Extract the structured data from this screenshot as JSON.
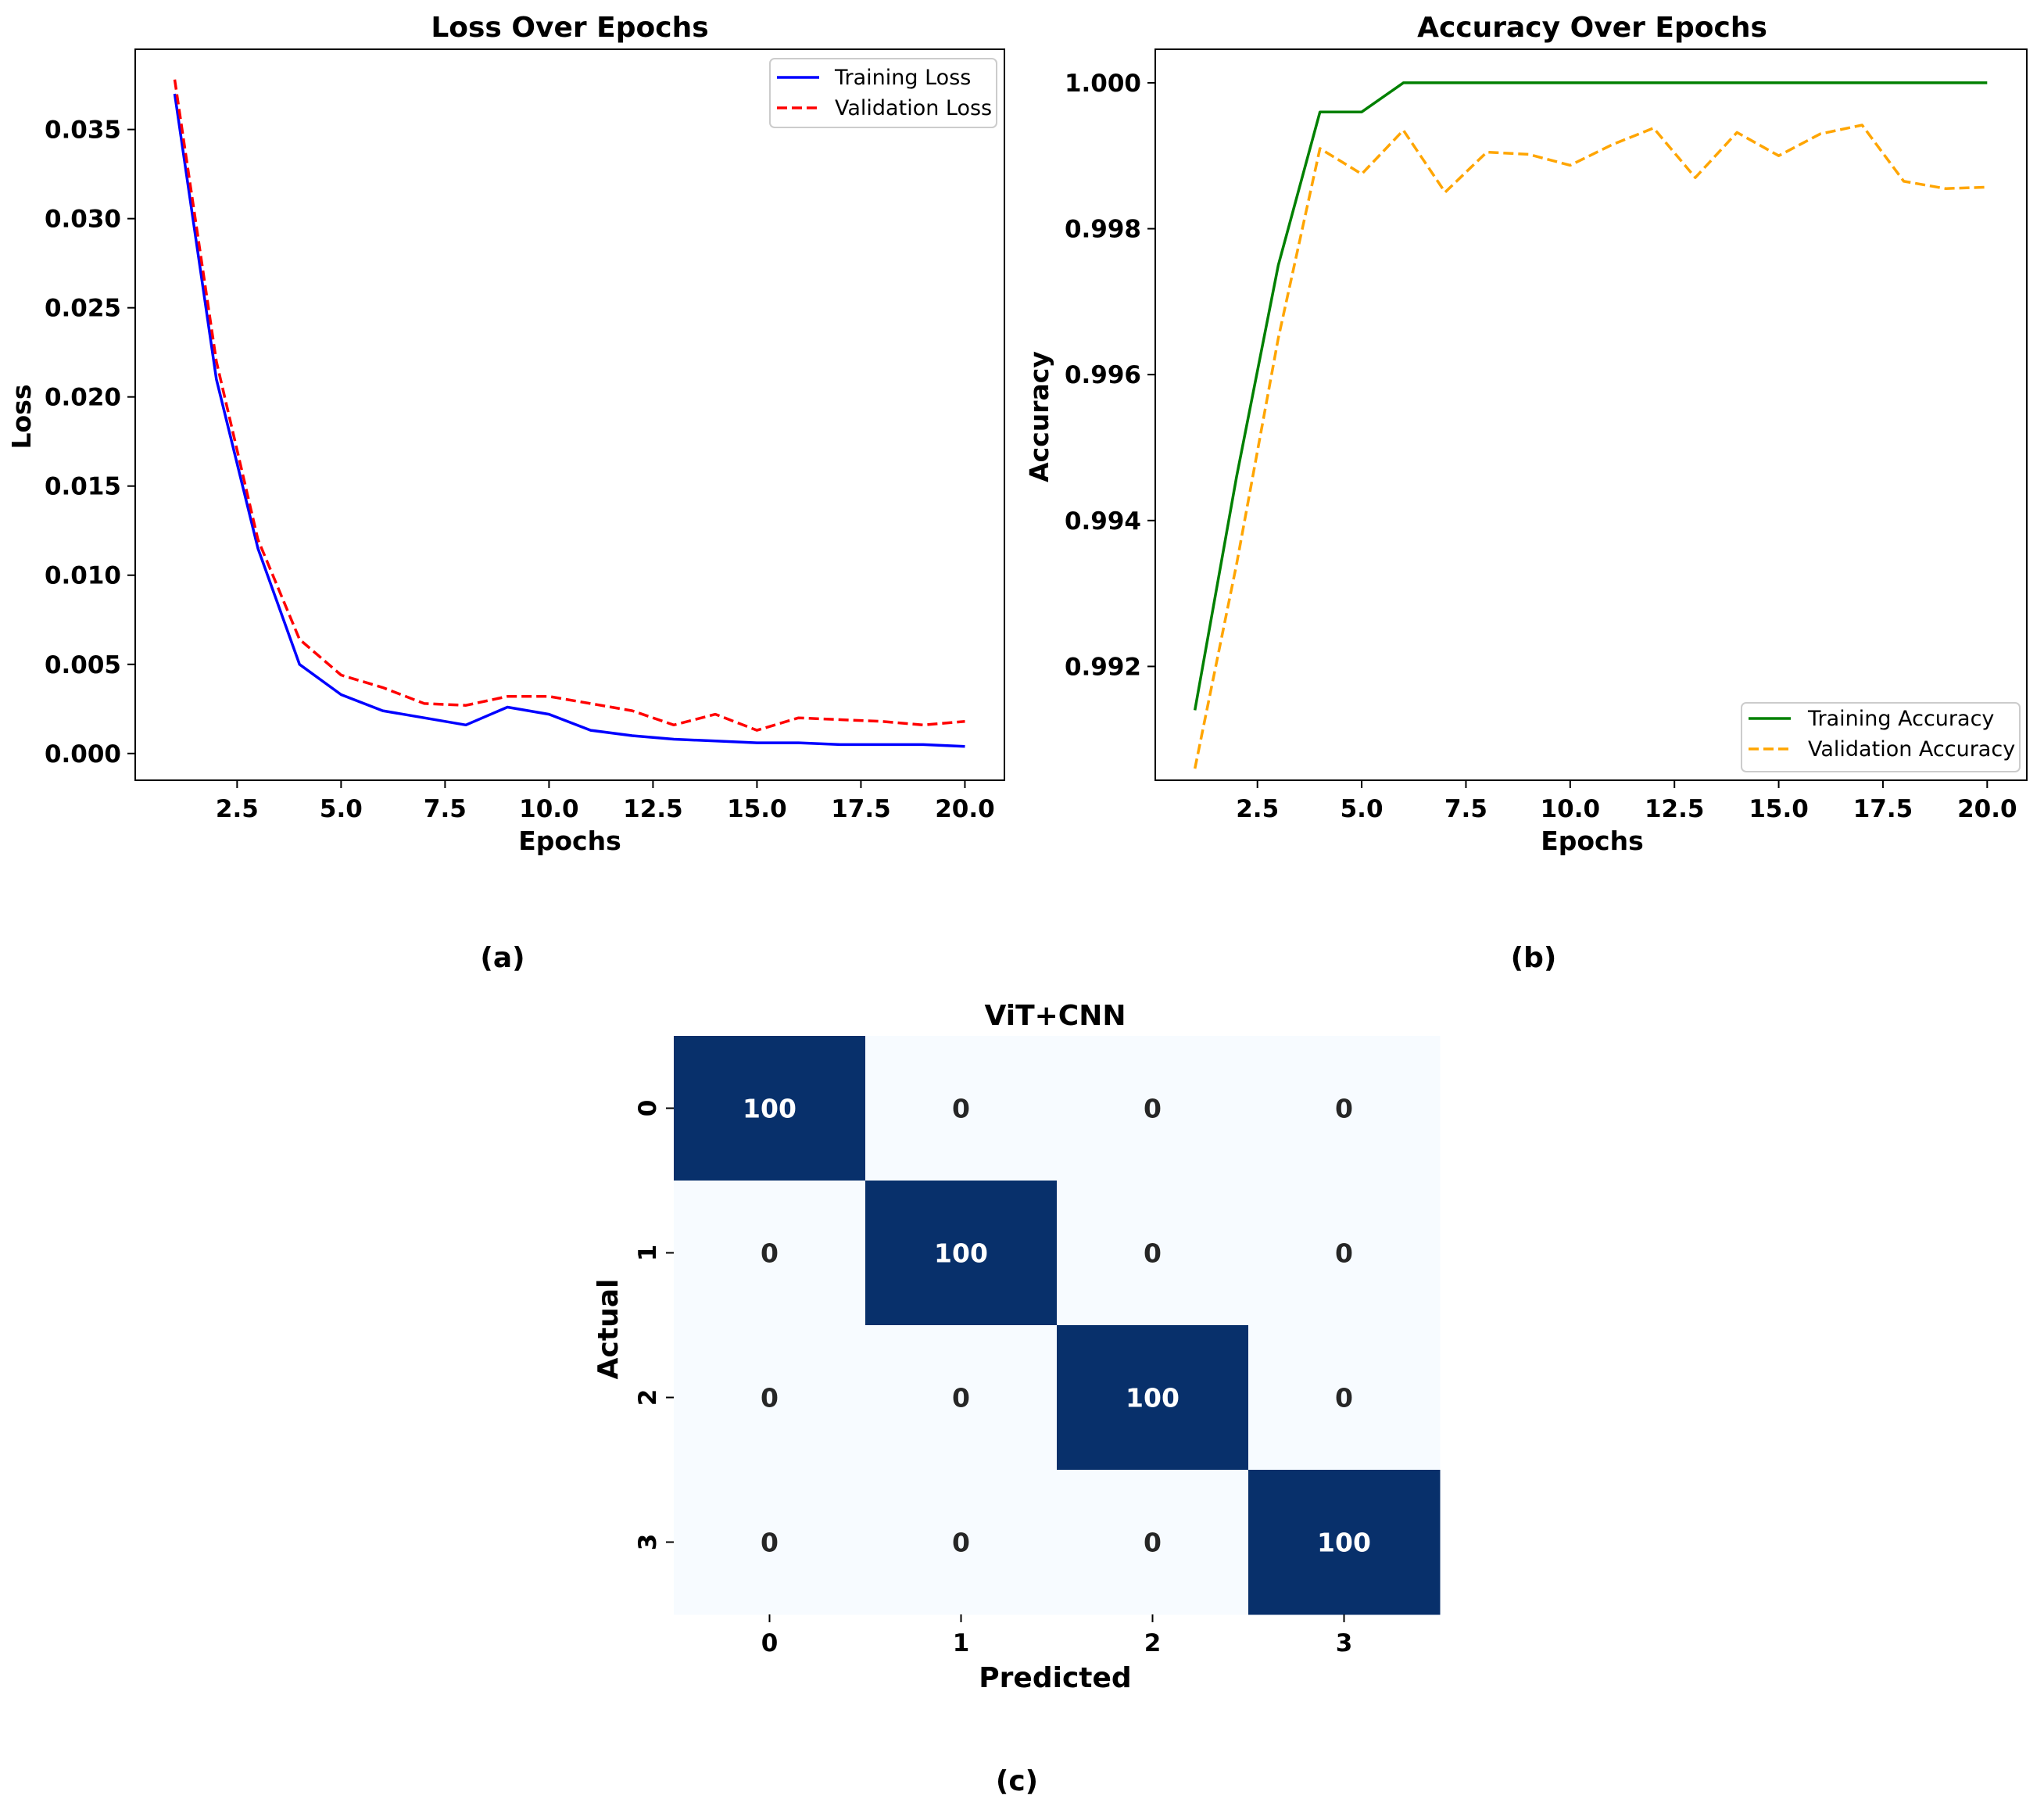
{
  "chart_data": [
    {
      "type": "line",
      "title": "Loss Over Epochs",
      "xlabel": "Epochs",
      "ylabel": "Loss",
      "xlim": [
        0.05,
        20.95
      ],
      "ylim": [
        -0.0015,
        0.0395
      ],
      "xticks": [
        "2.5",
        "5.0",
        "7.5",
        "10.0",
        "12.5",
        "15.0",
        "17.5",
        "20.0"
      ],
      "yticks": [
        "0.000",
        "0.005",
        "0.010",
        "0.015",
        "0.020",
        "0.025",
        "0.030",
        "0.035"
      ],
      "legend": "top-right",
      "grid": false,
      "x": [
        1,
        2,
        3,
        4,
        5,
        6,
        7,
        8,
        9,
        10,
        11,
        12,
        13,
        14,
        15,
        16,
        17,
        18,
        19,
        20
      ],
      "series": [
        {
          "name": "Training Loss",
          "color": "#0000ff",
          "style": "solid",
          "values": [
            0.037,
            0.021,
            0.0115,
            0.005,
            0.0033,
            0.0024,
            0.002,
            0.0016,
            0.0026,
            0.0022,
            0.0013,
            0.001,
            0.0008,
            0.0007,
            0.0006,
            0.0006,
            0.0005,
            0.0005,
            0.0005,
            0.0004
          ]
        },
        {
          "name": "Validation Loss",
          "color": "#ff0000",
          "style": "dashed",
          "values": [
            0.0378,
            0.022,
            0.012,
            0.0064,
            0.0044,
            0.0037,
            0.0028,
            0.0027,
            0.0032,
            0.0032,
            0.0028,
            0.0024,
            0.0016,
            0.0022,
            0.0013,
            0.002,
            0.0019,
            0.0018,
            0.0016,
            0.0018
          ]
        }
      ],
      "caption": "(a)"
    },
    {
      "type": "line",
      "title": "Accuracy Over Epochs",
      "xlabel": "Epochs",
      "ylabel": "Accuracy",
      "xlim": [
        0.05,
        20.95
      ],
      "ylim": [
        0.99044,
        1.00046
      ],
      "xticks": [
        "2.5",
        "5.0",
        "7.5",
        "10.0",
        "12.5",
        "15.0",
        "17.5",
        "20.0"
      ],
      "yticks": [
        "0.992",
        "0.994",
        "0.996",
        "0.998",
        "1.000"
      ],
      "legend": "bottom-right",
      "grid": false,
      "x": [
        1,
        2,
        3,
        4,
        5,
        6,
        7,
        8,
        9,
        10,
        11,
        12,
        13,
        14,
        15,
        16,
        17,
        18,
        19,
        20
      ],
      "series": [
        {
          "name": "Training Accuracy",
          "color": "#008000",
          "style": "solid",
          "values": [
            0.9914,
            0.9946,
            0.9975,
            0.9996,
            0.9996,
            1.0,
            1.0,
            1.0,
            1.0,
            1.0,
            1.0,
            1.0,
            1.0,
            1.0,
            1.0,
            1.0,
            1.0,
            1.0,
            1.0,
            1.0
          ]
        },
        {
          "name": "Validation Accuracy",
          "color": "#ffa500",
          "style": "dashed",
          "values": [
            0.9906,
            0.9934,
            0.9965,
            0.9991,
            0.99875,
            0.99935,
            0.9985,
            0.99905,
            0.99902,
            0.99887,
            0.99915,
            0.99938,
            0.9987,
            0.99932,
            0.999,
            0.9993,
            0.99942,
            0.99865,
            0.99855,
            0.99857
          ]
        }
      ],
      "caption": "(b)"
    },
    {
      "type": "heatmap",
      "title": "ViT+CNN",
      "xlabel": "Predicted",
      "ylabel": "Actual",
      "x_labels": [
        "0",
        "1",
        "2",
        "3"
      ],
      "y_labels": [
        "0",
        "1",
        "2",
        "3"
      ],
      "colormap": [
        "#f7fbff",
        "#08306b"
      ],
      "value_range": [
        0,
        100
      ],
      "values": [
        [
          100,
          0,
          0,
          0
        ],
        [
          0,
          100,
          0,
          0
        ],
        [
          0,
          0,
          100,
          0
        ],
        [
          0,
          0,
          0,
          100
        ]
      ],
      "caption": "(c)"
    }
  ]
}
